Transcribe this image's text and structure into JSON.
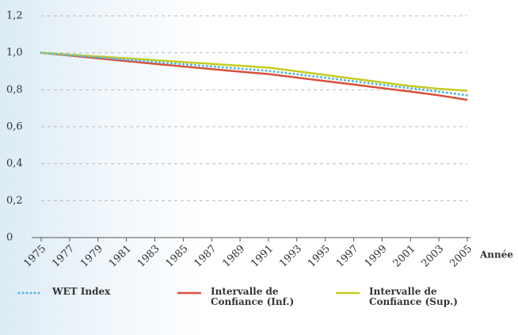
{
  "chart_data": {
    "type": "line",
    "x": [
      1975,
      1977,
      1979,
      1981,
      1983,
      1985,
      1987,
      1989,
      1991,
      1993,
      1995,
      1997,
      1999,
      2001,
      2003,
      2005
    ],
    "xlim": [
      1975,
      2005
    ],
    "xticks": [
      1975,
      1977,
      1979,
      1981,
      1983,
      1985,
      1987,
      1989,
      1991,
      1993,
      1995,
      1997,
      1999,
      2001,
      2003,
      2005
    ],
    "xlabel": "Année",
    "ylim": [
      0,
      1.2
    ],
    "yticks": [
      0,
      {
        "value": 0.2,
        "label": "0,2"
      },
      {
        "value": 0.4,
        "label": "0,4"
      },
      {
        "value": 0.6,
        "label": "0,6"
      },
      {
        "value": 0.8,
        "label": "0,8"
      },
      {
        "value": 1.0,
        "label": "1,0"
      },
      {
        "value": 1.2,
        "label": "1,2"
      }
    ],
    "grid": true,
    "legend": "bottom",
    "series": [
      {
        "name": "WET Index",
        "color": "#5ab4e5",
        "style": "dotted",
        "values": [
          1.0,
          0.987,
          0.975,
          0.963,
          0.95,
          0.938,
          0.926,
          0.914,
          0.902,
          0.884,
          0.865,
          0.846,
          0.827,
          0.808,
          0.79,
          0.77
        ]
      },
      {
        "name": "Intervalle de Confiance (Inf.)",
        "color": "#d9503a",
        "style": "solid",
        "values": [
          1.0,
          0.985,
          0.97,
          0.955,
          0.94,
          0.926,
          0.912,
          0.898,
          0.885,
          0.866,
          0.847,
          0.828,
          0.809,
          0.79,
          0.77,
          0.745
        ]
      },
      {
        "name": "Intervalle de Confiance (Sup.)",
        "color": "#c5cc1e",
        "style": "solid",
        "values": [
          1.0,
          0.99,
          0.98,
          0.97,
          0.96,
          0.95,
          0.94,
          0.93,
          0.92,
          0.9,
          0.88,
          0.86,
          0.84,
          0.82,
          0.805,
          0.795
        ]
      }
    ]
  }
}
